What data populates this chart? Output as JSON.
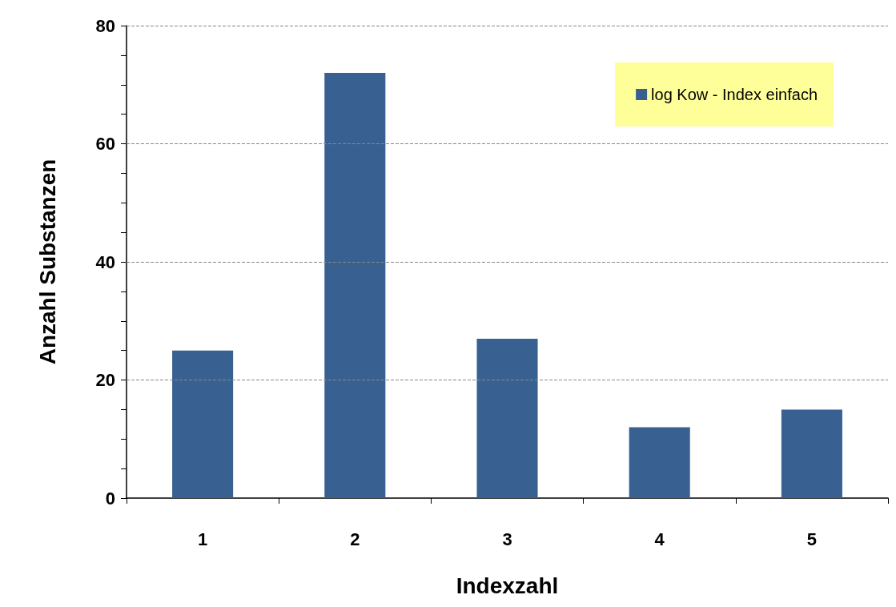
{
  "chart_data": {
    "type": "bar",
    "xlabel": "Indexzahl",
    "ylabel": "Anzahl Substanzen",
    "categories": [
      "1",
      "2",
      "3",
      "4",
      "5"
    ],
    "series": [
      {
        "name": "log Kow - Index einfach",
        "color": "#386192",
        "values": [
          25,
          72,
          27,
          12,
          15
        ]
      }
    ],
    "ylim": [
      0,
      80
    ],
    "yticks": [
      0,
      {
        "value": 5,
        "label": null
      },
      {
        "value": 10,
        "label": null
      },
      {
        "value": 15,
        "label": null
      },
      20,
      {
        "value": 25,
        "label": null
      },
      {
        "value": 30,
        "label": null
      },
      {
        "value": 35,
        "label": null
      },
      40,
      {
        "value": 45,
        "label": null
      },
      {
        "value": 50,
        "label": null
      },
      {
        "value": 55,
        "label": null
      },
      60,
      {
        "value": 65,
        "label": null
      },
      {
        "value": 70,
        "label": null
      },
      {
        "value": 75,
        "label": null
      },
      80
    ],
    "grid": "y",
    "legend": "top right"
  }
}
